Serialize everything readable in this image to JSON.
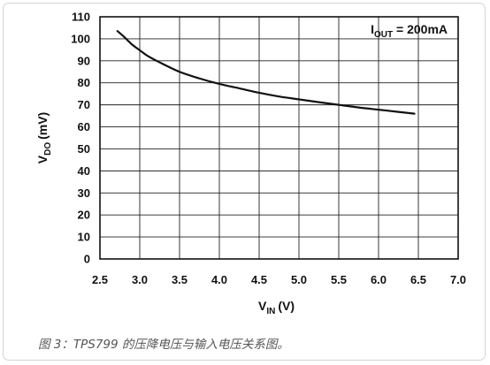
{
  "chart_data": {
    "type": "line",
    "xlabel": {
      "main": "V",
      "sub": "IN",
      "unit": "(V)"
    },
    "ylabel": {
      "main": "V",
      "sub": "DO",
      "unit": "(mV)"
    },
    "xlim": [
      2.5,
      7.0
    ],
    "ylim": [
      0,
      110
    ],
    "x_ticks": [
      "2.5",
      "3.0",
      "3.5",
      "4.0",
      "4.5",
      "5.0",
      "5.5",
      "6.0",
      "6.5",
      "7.0"
    ],
    "y_ticks": [
      "0",
      "10",
      "20",
      "30",
      "40",
      "50",
      "60",
      "70",
      "80",
      "90",
      "100",
      "110"
    ],
    "grid": true,
    "annotation": {
      "main": "I",
      "sub": "OUT",
      "rest": " = 200mA"
    },
    "series": [
      {
        "x": [
          2.72,
          2.8,
          2.9,
          3.0,
          3.1,
          3.25,
          3.5,
          3.75,
          4.0,
          4.25,
          4.5,
          4.75,
          5.0,
          5.25,
          5.5,
          5.75,
          6.0,
          6.25,
          6.45
        ],
        "y": [
          103.5,
          101.0,
          97.5,
          94.8,
          92.2,
          89.3,
          85.0,
          82.0,
          79.5,
          77.5,
          75.5,
          73.8,
          72.5,
          71.2,
          70.0,
          68.8,
          67.8,
          66.8,
          66.0
        ]
      }
    ]
  },
  "caption": "图 3：TPS799 的压降电压与输入电压关系图。"
}
